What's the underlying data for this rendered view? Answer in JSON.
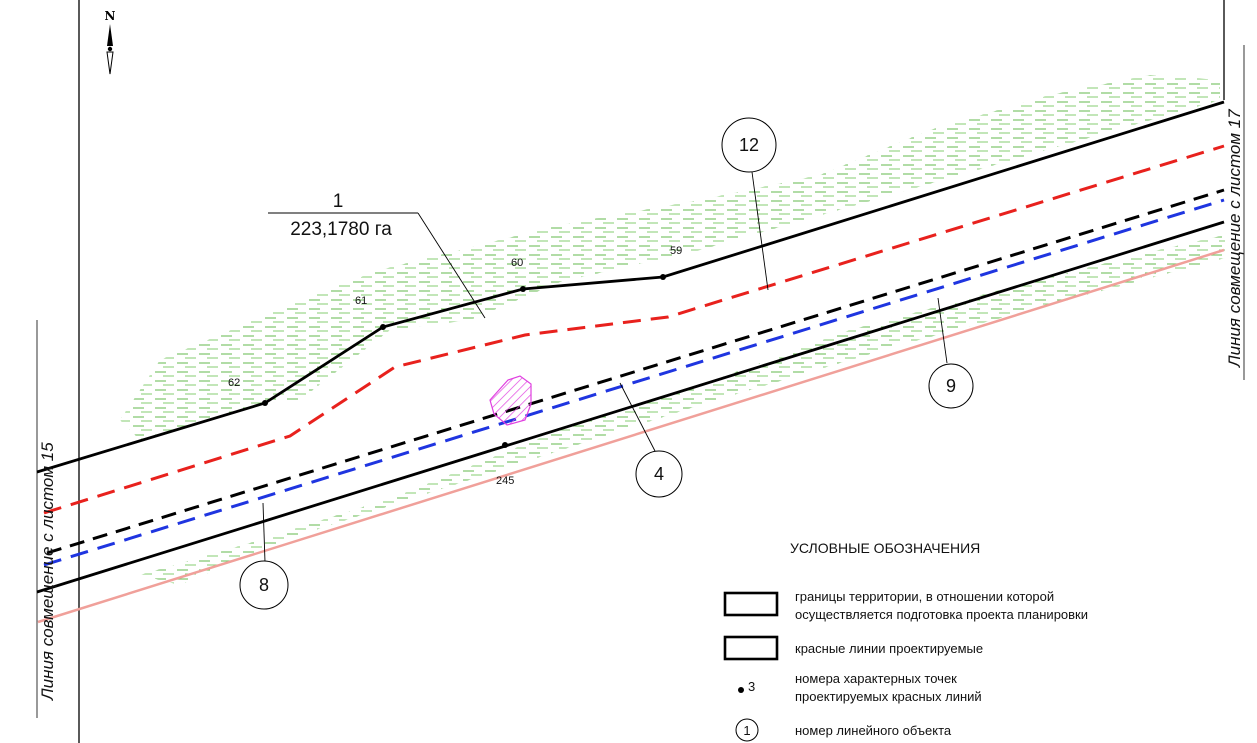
{
  "north": "N",
  "side_left": "Линия совмещение с листом 15",
  "side_right": "Линия совмещение с листом 17",
  "parcel": {
    "number": "1",
    "area": "223,1780 га"
  },
  "points": {
    "p62": "62",
    "p61": "61",
    "p60": "60",
    "p59": "59",
    "p245": "245"
  },
  "objects": {
    "o12": "12",
    "o9": "9",
    "o4": "4",
    "o8": "8"
  },
  "legend": {
    "title": "УСЛОВНЫЕ ОБОЗНАЧЕНИЯ",
    "boundary_line1": "границы территории, в отношении которой",
    "boundary_line2": "осуществляется подготовка проекта планировки",
    "red_lines": "красные линии проектируемые",
    "point_sample": "3",
    "points_line1": "номера характерных точек",
    "points_line2": "проектируемых красных линий",
    "object_sample": "1",
    "object_text": "номер линейного объекта"
  },
  "colors": {
    "boundary": "#000000",
    "red_dashed": "#e8211d",
    "black_dashed": "#000000",
    "blue_dashed": "#1f35e0",
    "pink_line": "#f0a09a",
    "vegetation": "#7cc46a",
    "hatch": "#e040e0"
  }
}
